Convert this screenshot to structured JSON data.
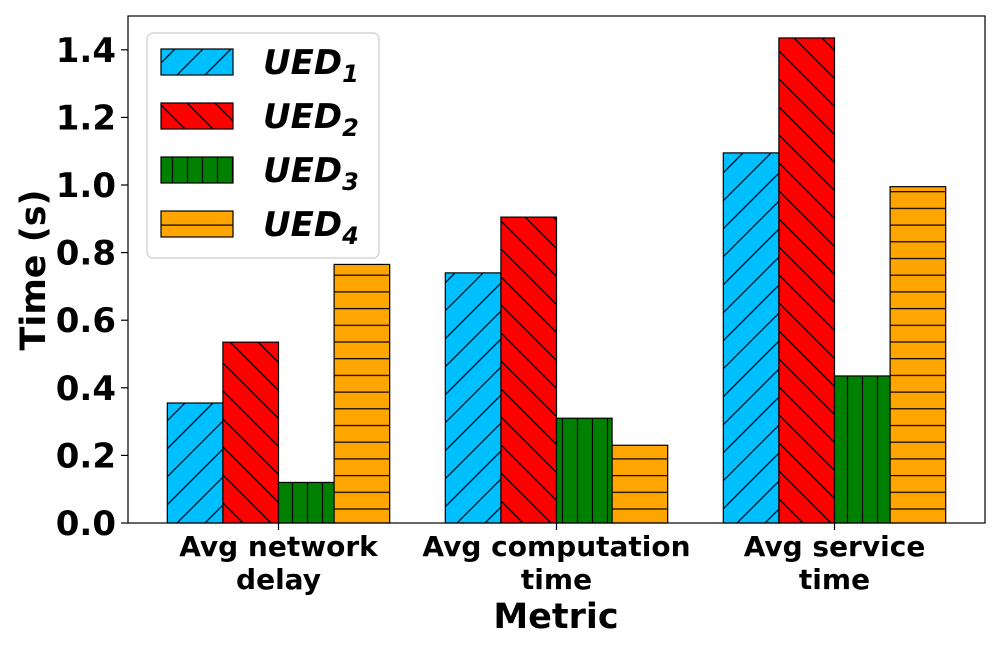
{
  "chart_data": {
    "type": "bar",
    "categories": [
      [
        "Avg network",
        "delay"
      ],
      [
        "Avg computation",
        "time"
      ],
      [
        "Avg service",
        "time"
      ]
    ],
    "series": [
      {
        "name": "UED",
        "subscript": "1",
        "values": [
          0.355,
          0.74,
          1.095
        ],
        "color": "#00bfff",
        "hatch": "diag-forward"
      },
      {
        "name": "UED",
        "subscript": "2",
        "values": [
          0.535,
          0.905,
          1.435
        ],
        "color": "#ff0000",
        "hatch": "diag-back"
      },
      {
        "name": "UED",
        "subscript": "3",
        "values": [
          0.12,
          0.31,
          0.435
        ],
        "color": "#008000",
        "hatch": "vertical"
      },
      {
        "name": "UED",
        "subscript": "4",
        "values": [
          0.765,
          0.23,
          0.995
        ],
        "color": "#ffa500",
        "hatch": "horizontal"
      }
    ],
    "xlabel": "Metric",
    "ylabel": "Time (s)",
    "ylim": [
      0,
      1.5
    ],
    "yticks": [
      "0.0",
      "0.2",
      "0.4",
      "0.6",
      "0.8",
      "1.0",
      "1.2",
      "1.4"
    ],
    "legend_position": "top-left",
    "grid": false
  }
}
